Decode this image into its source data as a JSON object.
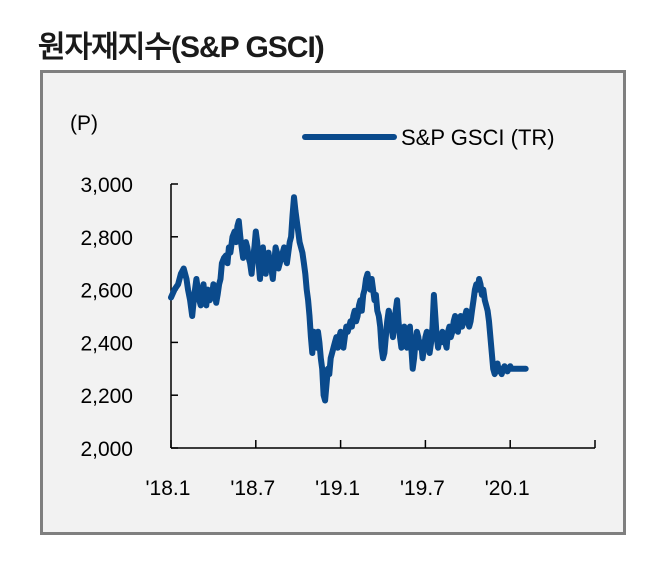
{
  "page_title": "원자재지수(S&P GSCI)",
  "chart_data": {
    "type": "line",
    "title": "원자재지수(S&P GSCI)",
    "ylabel": "(P)",
    "xlabel": "",
    "ylim": [
      2000,
      3000
    ],
    "yticks": [
      2000,
      2200,
      2400,
      2600,
      2800,
      3000
    ],
    "ytick_labels": [
      "2,000",
      "2,200",
      "2,400",
      "2,600",
      "2,800",
      "3,000"
    ],
    "xlim": [
      0,
      30
    ],
    "xticks": [
      0,
      6,
      12,
      18,
      24
    ],
    "xtick_labels": [
      "'18.1",
      "'18.7",
      "'19.1",
      "'19.7",
      "'20.1"
    ],
    "legend_position": "top-right",
    "color": "#0a4a8c",
    "series": [
      {
        "name": "S&P GSCI (TR)",
        "x": [
          0,
          0.25,
          0.5,
          0.7,
          0.9,
          1.0,
          1.1,
          1.2,
          1.35,
          1.5,
          1.65,
          1.8,
          1.9,
          2.0,
          2.1,
          2.2,
          2.3,
          2.4,
          2.5,
          2.6,
          2.75,
          2.9,
          3.0,
          3.1,
          3.2,
          3.3,
          3.4,
          3.5,
          3.6,
          3.75,
          3.9,
          4.0,
          4.1,
          4.2,
          4.35,
          4.5,
          4.6,
          4.7,
          4.8,
          4.9,
          5.0,
          5.1,
          5.2,
          5.3,
          5.4,
          5.5,
          5.6,
          5.7,
          5.8,
          5.9,
          6.0,
          6.1,
          6.2,
          6.3,
          6.4,
          6.5,
          6.6,
          6.7,
          6.8,
          6.9,
          7.0,
          7.1,
          7.2,
          7.3,
          7.4,
          7.5,
          7.6,
          7.7,
          7.8,
          7.9,
          8.0,
          8.1,
          8.2,
          8.3,
          8.4,
          8.5,
          8.6,
          8.7,
          8.8,
          8.9,
          9.0,
          9.1,
          9.2,
          9.3,
          9.4,
          9.5,
          9.6,
          9.7,
          9.8,
          9.9,
          10.0,
          10.1,
          10.2,
          10.3,
          10.4,
          10.5,
          10.6,
          10.7,
          10.8,
          10.9,
          11.0,
          11.1,
          11.2,
          11.3,
          11.4,
          11.5,
          11.6,
          11.7,
          11.8,
          11.9,
          12.0,
          12.1,
          12.2,
          12.3,
          12.4,
          12.5,
          12.6,
          12.7,
          12.8,
          12.9,
          13.0,
          13.1,
          13.2,
          13.3,
          13.4,
          13.5,
          13.6,
          13.7,
          13.8,
          13.9,
          14.0,
          14.1,
          14.2,
          14.3,
          14.4,
          14.5,
          14.6,
          14.7,
          14.8,
          14.9,
          15.0,
          15.1,
          15.2,
          15.3,
          15.4,
          15.5,
          15.6,
          15.7,
          15.8,
          15.9,
          16.0,
          16.1,
          16.2,
          16.3,
          16.4,
          16.5,
          16.6,
          16.7,
          16.8,
          16.9,
          17.0,
          17.1,
          17.2,
          17.3,
          17.4,
          17.5,
          17.6,
          17.7,
          17.8,
          17.9,
          18.0,
          18.1,
          18.2,
          18.3,
          18.4,
          18.5,
          18.6,
          18.7,
          18.8,
          18.9,
          19.0,
          19.1,
          19.2,
          19.3,
          19.4,
          19.5,
          19.6,
          19.7,
          19.8,
          19.9,
          20.0,
          20.1,
          20.2,
          20.3,
          20.4,
          20.5,
          20.6,
          20.7,
          20.8,
          20.9,
          21.0,
          21.1,
          21.2,
          21.3,
          21.4,
          21.5,
          21.6,
          21.7,
          21.8,
          21.9,
          22.0,
          22.1,
          22.2,
          22.3,
          22.4,
          22.5,
          22.6,
          22.7,
          22.8,
          22.9,
          23.0,
          23.1,
          23.2,
          23.3,
          23.4,
          23.5,
          23.6,
          23.7,
          23.8,
          23.9,
          24.0,
          24.1,
          24.2,
          24.3,
          24.4,
          24.5,
          24.6,
          24.7,
          24.8,
          24.9,
          25.0,
          25.1
        ],
        "values": [
          2570,
          2600,
          2620,
          2660,
          2680,
          2660,
          2640,
          2600,
          2560,
          2500,
          2580,
          2640,
          2600,
          2560,
          2540,
          2580,
          2620,
          2560,
          2540,
          2600,
          2560,
          2580,
          2620,
          2600,
          2550,
          2580,
          2620,
          2640,
          2700,
          2720,
          2730,
          2700,
          2760,
          2740,
          2800,
          2820,
          2780,
          2840,
          2860,
          2800,
          2760,
          2720,
          2740,
          2780,
          2760,
          2720,
          2700,
          2660,
          2720,
          2760,
          2820,
          2780,
          2700,
          2640,
          2720,
          2760,
          2700,
          2660,
          2720,
          2740,
          2700,
          2680,
          2640,
          2700,
          2760,
          2740,
          2680,
          2700,
          2720,
          2740,
          2760,
          2720,
          2700,
          2740,
          2780,
          2800,
          2880,
          2950,
          2900,
          2860,
          2820,
          2780,
          2760,
          2740,
          2700,
          2660,
          2600,
          2560,
          2500,
          2420,
          2360,
          2440,
          2400,
          2380,
          2440,
          2400,
          2340,
          2300,
          2200,
          2180,
          2240,
          2300,
          2280,
          2340,
          2360,
          2380,
          2400,
          2420,
          2380,
          2420,
          2440,
          2400,
          2380,
          2420,
          2460,
          2440,
          2460,
          2480,
          2460,
          2500,
          2520,
          2480,
          2500,
          2540,
          2560,
          2520,
          2580,
          2600,
          2640,
          2660,
          2620,
          2600,
          2640,
          2600,
          2560,
          2580,
          2520,
          2500,
          2460,
          2380,
          2340,
          2360,
          2420,
          2480,
          2520,
          2500,
          2460,
          2420,
          2460,
          2520,
          2560,
          2480,
          2420,
          2380,
          2420,
          2460,
          2420,
          2380,
          2420,
          2460,
          2380,
          2300,
          2340,
          2400,
          2440,
          2420,
          2380,
          2400,
          2340,
          2380,
          2420,
          2440,
          2400,
          2360,
          2400,
          2460,
          2580,
          2500,
          2420,
          2380,
          2420,
          2400,
          2440,
          2420,
          2400,
          2380,
          2440,
          2460,
          2420,
          2440,
          2480,
          2500,
          2460,
          2440,
          2480,
          2500,
          2460,
          2480,
          2500,
          2520,
          2480,
          2460,
          2480,
          2520,
          2560,
          2600,
          2620,
          2600,
          2640,
          2620,
          2580,
          2600,
          2560,
          2540,
          2520,
          2480,
          2420,
          2360,
          2300,
          2280,
          2300,
          2320,
          2290,
          2300,
          2280,
          2300,
          2310,
          2300,
          2290,
          2300,
          2310,
          2300,
          2300,
          2300,
          2300,
          2300,
          2300,
          2300,
          2300,
          2300,
          2300,
          2300
        ]
      }
    ]
  }
}
